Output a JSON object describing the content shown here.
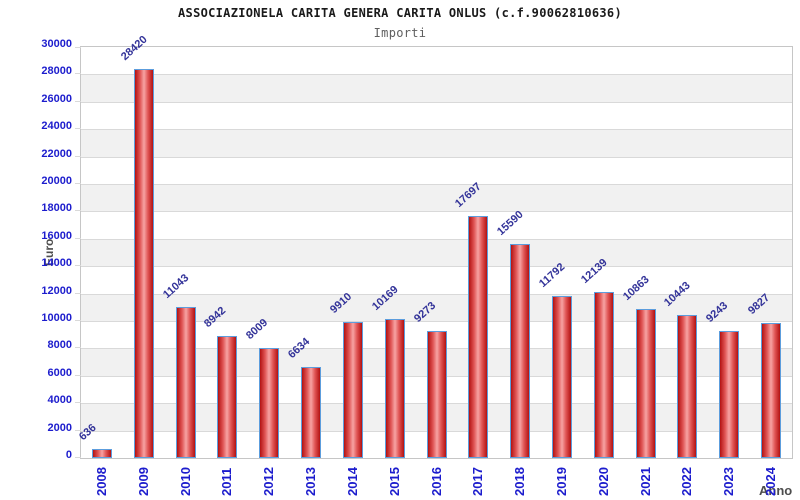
{
  "chart_data": {
    "type": "bar",
    "title": "ASSOCIAZIONELA CARITA GENERA CARITA ONLUS (c.f.90062810636)",
    "subtitle": "Importi",
    "xlabel": "Anno",
    "ylabel": "Euro",
    "categories": [
      "2008",
      "2009",
      "2010",
      "2011",
      "2012",
      "2013",
      "2014",
      "2015",
      "2016",
      "2017",
      "2018",
      "2019",
      "2020",
      "2021",
      "2022",
      "2023",
      "2024"
    ],
    "values": [
      636,
      28420,
      11043,
      8942,
      8009,
      6634,
      9910,
      10169,
      9273,
      17697,
      15590,
      11792,
      12139,
      10863,
      10443,
      9243,
      9827
    ],
    "ylim": [
      0,
      30000
    ],
    "ytick_step": 2000,
    "grid": true,
    "legend_position": "none",
    "bar_value_labels_rotated": true,
    "x_tick_labels_rotated": true,
    "colors": {
      "title": "#1a1a1a",
      "subtitle": "#5f5f5f",
      "axis_title": "#4d4d4d",
      "tick_label": "#1c1ccd",
      "value_label": "#333399",
      "bar_edge": "#b31212",
      "bar_mid": "#e05555",
      "bar_center": "#f7a3a3",
      "bar_border": "#5c9ddd",
      "band_main": "#ffffff",
      "band_alt": "#f1f1f1",
      "gridline": "#d9d9d9",
      "plot_border": "#c6c6c6"
    }
  }
}
